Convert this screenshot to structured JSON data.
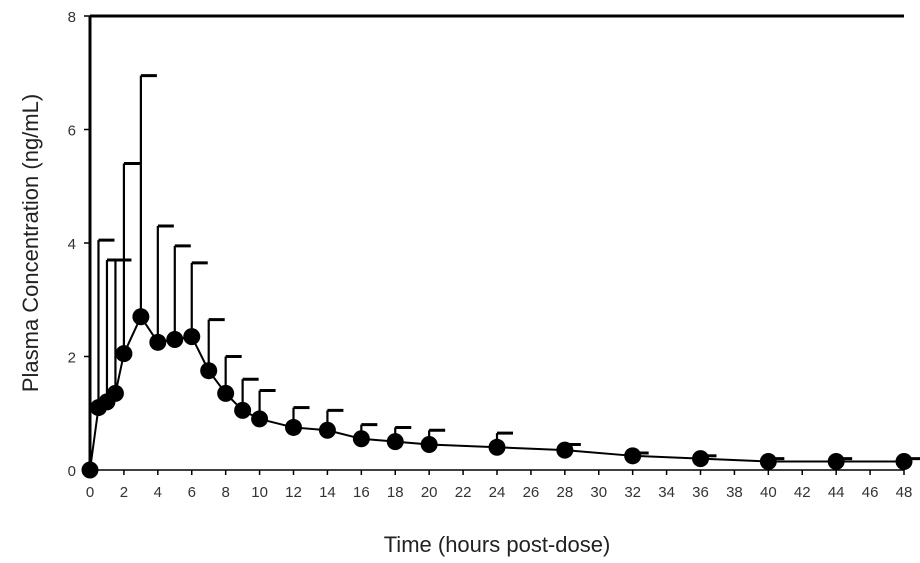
{
  "chart_data": {
    "type": "line",
    "title": "",
    "xlabel": "Time (hours post-dose)",
    "ylabel": "Plasma Concentration (ng/mL)",
    "xlim": [
      0,
      48
    ],
    "ylim": [
      0,
      8
    ],
    "xticks": [
      0,
      2,
      4,
      6,
      8,
      10,
      12,
      14,
      16,
      18,
      20,
      22,
      24,
      26,
      28,
      30,
      32,
      34,
      36,
      38,
      40,
      42,
      44,
      46,
      48
    ],
    "yticks": [
      0,
      2,
      4,
      6,
      8
    ],
    "grid": false,
    "legend": "none",
    "series": [
      {
        "x": [
          0,
          0.5,
          1,
          1.5,
          2,
          3,
          4,
          5,
          6,
          7,
          8,
          9,
          10,
          12,
          14,
          16,
          18,
          20,
          24,
          28,
          32,
          36,
          40,
          44,
          48
        ],
        "y": [
          0,
          1.1,
          1.2,
          1.35,
          2.05,
          2.7,
          2.25,
          2.3,
          2.35,
          1.75,
          1.35,
          1.05,
          0.9,
          0.75,
          0.7,
          0.55,
          0.5,
          0.45,
          0.4,
          0.35,
          0.25,
          0.2,
          0.15,
          0.15,
          0.15
        ],
        "error_upper": [
          0,
          4.05,
          3.7,
          3.7,
          5.4,
          6.95,
          4.3,
          3.95,
          3.65,
          2.65,
          2.0,
          1.6,
          1.4,
          1.1,
          1.05,
          0.8,
          0.75,
          0.7,
          0.65,
          0.45,
          0.3,
          0.25,
          0.2,
          0.2,
          0.2
        ]
      }
    ],
    "colors": {
      "line": "#000000",
      "marker": "#000000",
      "axis": "#000000"
    }
  }
}
